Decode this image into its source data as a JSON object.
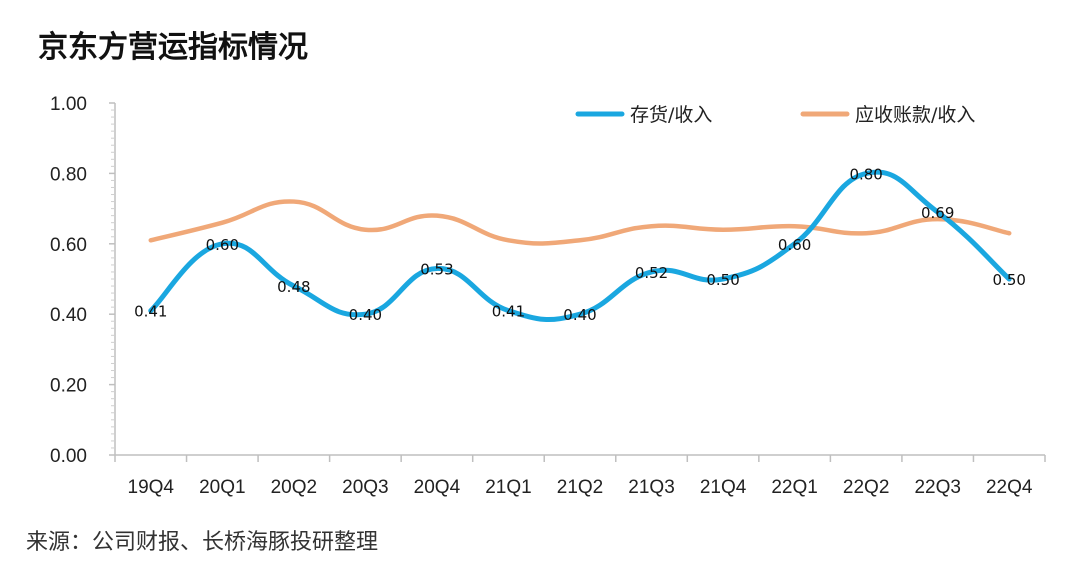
{
  "title": "京东方营运指标情况",
  "source": "来源：公司财报、长桥海豚投研整理",
  "chart_data": {
    "type": "line",
    "categories": [
      "19Q4",
      "20Q1",
      "20Q2",
      "20Q3",
      "20Q4",
      "21Q1",
      "21Q2",
      "21Q3",
      "21Q4",
      "22Q1",
      "22Q2",
      "22Q3",
      "22Q4"
    ],
    "y_tick_labels": [
      "0.00",
      "0.20",
      "0.40",
      "0.60",
      "0.80",
      "1.00"
    ],
    "ylim": [
      0,
      1
    ],
    "grid": false,
    "legend_position": "top-right",
    "series": [
      {
        "name": "存货/收入",
        "color": "#1aa7e0",
        "values": [
          0.41,
          0.6,
          0.48,
          0.4,
          0.53,
          0.41,
          0.4,
          0.52,
          0.5,
          0.6,
          0.8,
          0.69,
          0.5
        ],
        "data_labels": [
          "0.41",
          "0.60",
          "0.48",
          "0.40",
          "0.53",
          "0.41",
          "0.40",
          "0.52",
          "0.50",
          "0.60",
          "0.80",
          "0.69",
          "0.50"
        ]
      },
      {
        "name": "应收账款/收入",
        "color": "#f0a878",
        "values": [
          0.61,
          0.66,
          0.72,
          0.64,
          0.68,
          0.61,
          0.61,
          0.65,
          0.64,
          0.65,
          0.63,
          0.67,
          0.63
        ]
      }
    ]
  }
}
